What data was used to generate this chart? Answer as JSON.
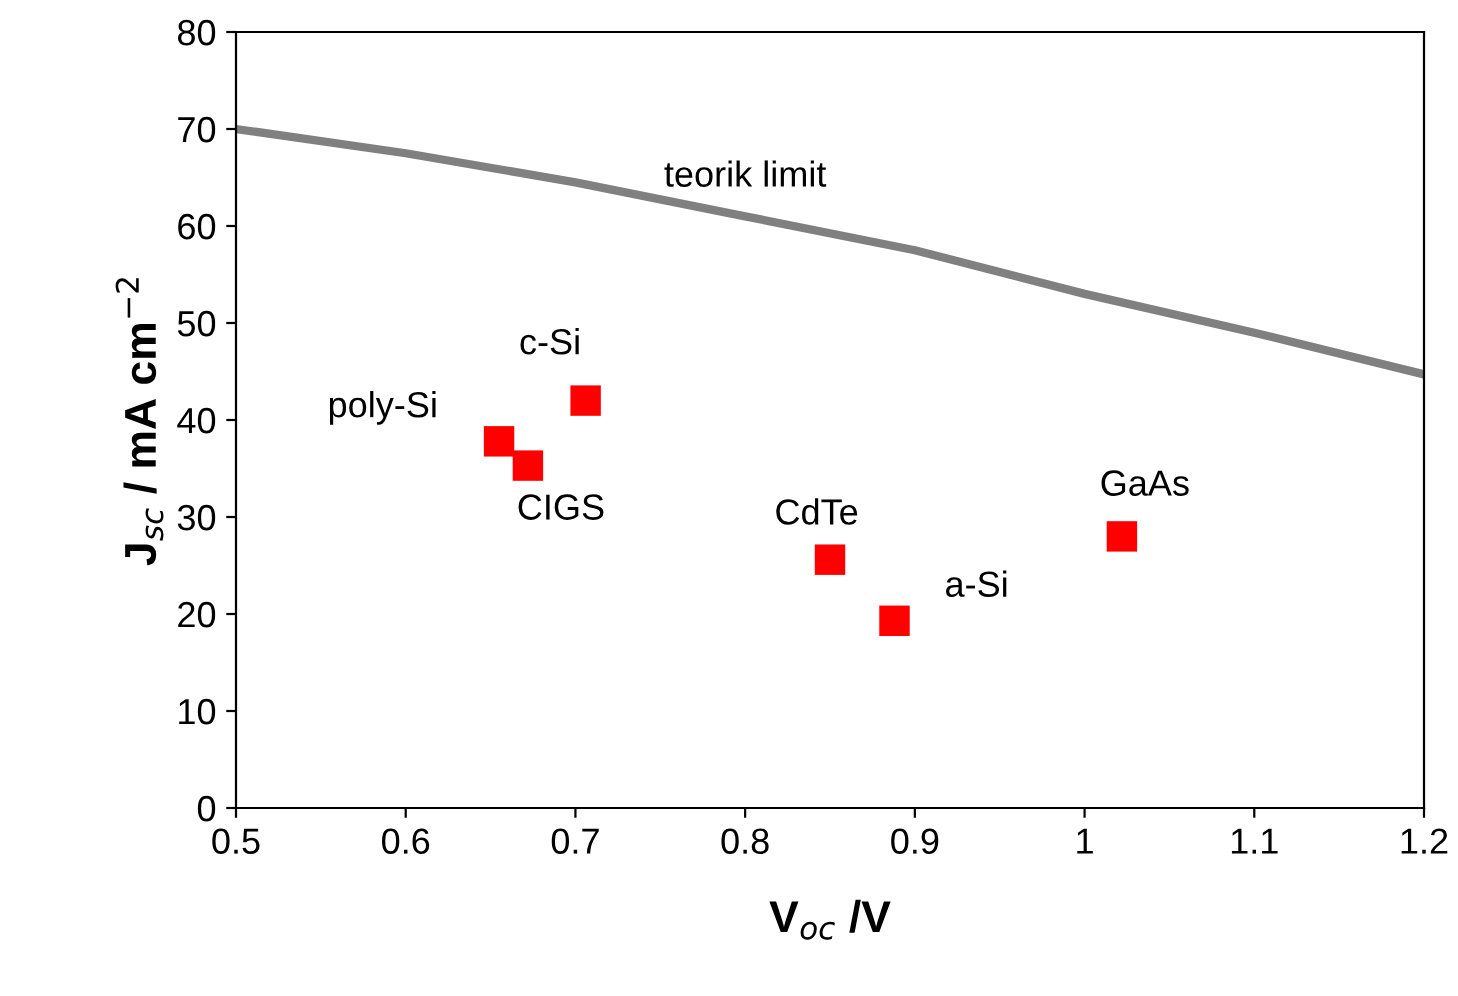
{
  "chart_data": {
    "type": "scatter",
    "xlabel": "V$_{oc}$ /V",
    "ylabel": "J$_{sc}$ / mA cm$^{−2}$",
    "series": [
      {
        "type": "line",
        "color": "#808080",
        "x": [
          0.5,
          0.6,
          0.7,
          0.8,
          0.9,
          1,
          1.1,
          1.2
        ],
        "values": [
          70,
          67.5,
          64.5,
          61,
          57.5,
          53,
          49,
          44.7
        ]
      },
      {
        "color": "#ff0000",
        "marker": "square",
        "x": [
          0.655,
          0.672,
          0.706,
          0.85,
          0.888,
          1.022
        ],
        "values": [
          37.8,
          35.3,
          42,
          25.6,
          19.3,
          28
        ]
      }
    ],
    "annotations": [
      {
        "text": "poly-Si",
        "x": 0.655,
        "y": 37.8
      },
      {
        "text": "CIGS",
        "x": 0.672,
        "y": 35.3
      },
      {
        "text": "c-Si",
        "x": 0.706,
        "y": 42
      },
      {
        "text": "CdTe",
        "x": 0.85,
        "y": 25.6
      },
      {
        "text": "a-Si",
        "x": 0.888,
        "y": 19.3
      },
      {
        "text": "GaAs",
        "x": 1.022,
        "y": 28
      },
      {
        "text": "teorik limit",
        "x": 0.8,
        "y": 61
      }
    ],
    "xlim": [
      0.5,
      1.2
    ],
    "ylim": [
      0,
      80
    ],
    "xticks": [
      0.5,
      0.6,
      0.7,
      0.8,
      0.9,
      1,
      1.1,
      1.2
    ],
    "yticks": [
      0,
      10,
      20,
      30,
      40,
      50,
      60,
      70,
      80
    ],
    "grid": false,
    "legend": false
  }
}
